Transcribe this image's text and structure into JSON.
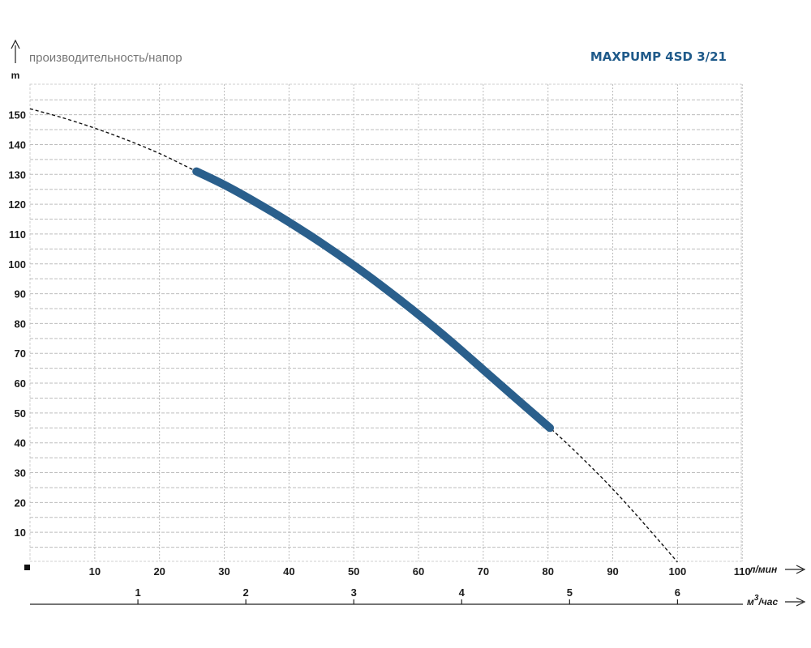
{
  "chart_data": {
    "type": "line",
    "title": "MAXPUMP 4SD 3/21",
    "subtitle": "производительность/напор",
    "ylabel": "m",
    "xlabel": "л/мин",
    "x2label": "м³/час",
    "x2label_base": "м",
    "x2label_sup": "3",
    "x2label_rest": "/час",
    "xlim": [
      0,
      110
    ],
    "ylim": [
      0,
      155
    ],
    "x_ticks": [
      10,
      20,
      30,
      40,
      50,
      60,
      70,
      80,
      90,
      100,
      110
    ],
    "y_ticks": [
      10,
      20,
      30,
      40,
      50,
      60,
      70,
      80,
      90,
      100,
      110,
      120,
      130,
      140,
      150
    ],
    "x2_ticks": [
      1,
      2,
      3,
      4,
      5,
      6
    ],
    "grid": true,
    "colors": {
      "curve": "#2a5f8c",
      "title": "#1f5a8a",
      "grid": "#bdbdbd"
    },
    "series": [
      {
        "role": "operating range",
        "style": "solid",
        "x": [
          25.7,
          30,
          35,
          40,
          45,
          50,
          55,
          60,
          65,
          70,
          75,
          80.3
        ],
        "y": [
          131,
          126.5,
          120.5,
          114,
          107,
          99.5,
          91.5,
          83,
          74,
          64.5,
          55,
          45
        ]
      },
      {
        "role": "extended curve",
        "style": "dashed",
        "x": [
          0,
          5,
          10,
          15,
          20,
          25.7,
          30,
          35,
          40,
          45,
          50,
          55,
          60,
          65,
          70,
          75,
          80.3,
          85,
          90,
          95,
          100
        ],
        "y": [
          152,
          149,
          145.5,
          141.5,
          137,
          131,
          126.5,
          120.5,
          114,
          107,
          99.5,
          91.5,
          83,
          74,
          64.5,
          55,
          45,
          35.5,
          24.5,
          12.5,
          0
        ]
      }
    ]
  }
}
